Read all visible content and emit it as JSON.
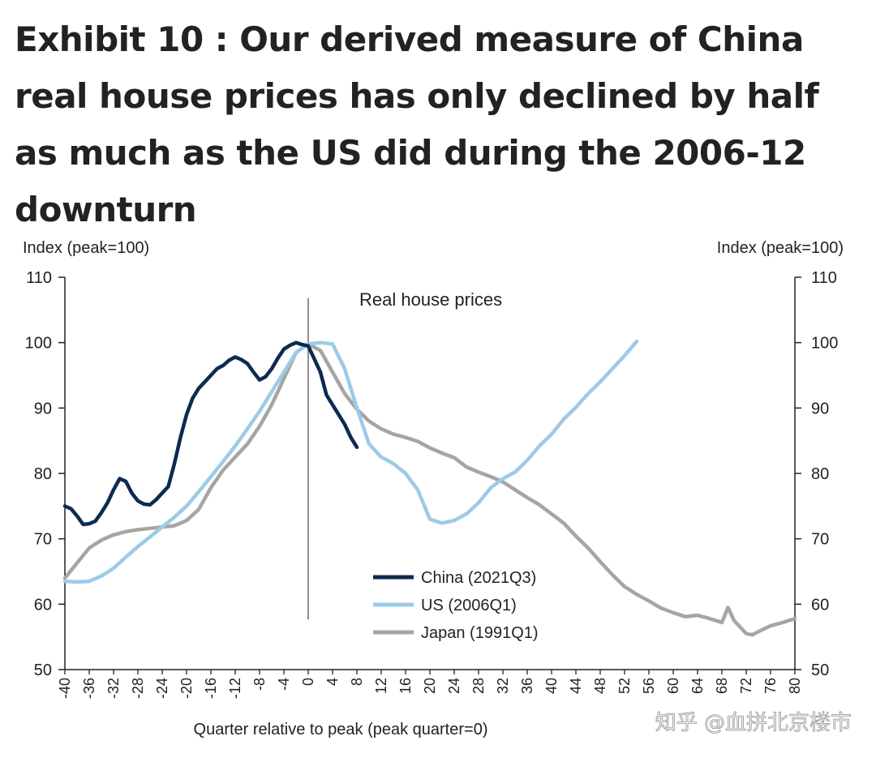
{
  "title": "Exhibit 10 : Our derived measure of China real house prices has only declined by half as much as the US did during the 2006-12 downturn",
  "watermark": "知乎 @血拼北京楼市",
  "chart_data": {
    "type": "line",
    "annotation": "Real house prices",
    "ylabel_left": "Index (peak=100)",
    "ylabel_right": "Index (peak=100)",
    "xlabel": "Quarter relative to peak (peak quarter=0)",
    "ylim": [
      50,
      110
    ],
    "yticks": [
      50,
      60,
      70,
      80,
      90,
      100,
      110
    ],
    "xlim": [
      -40,
      80
    ],
    "xticks": [
      -40,
      -36,
      -32,
      -28,
      -24,
      -20,
      -16,
      -12,
      -8,
      -4,
      0,
      4,
      8,
      12,
      16,
      20,
      24,
      28,
      32,
      36,
      40,
      44,
      48,
      52,
      56,
      60,
      64,
      68,
      72,
      76,
      80
    ],
    "peak_line_x": 0,
    "grid": false,
    "legend_position": "bottom-center",
    "series": [
      {
        "name": "China (2021Q3)",
        "color": "#0d2a52",
        "points": [
          [
            -40,
            75
          ],
          [
            -39,
            74.6
          ],
          [
            -38,
            73.5
          ],
          [
            -37,
            72.2
          ],
          [
            -36,
            72.3
          ],
          [
            -35,
            72.7
          ],
          [
            -34,
            74
          ],
          [
            -33,
            75.5
          ],
          [
            -32,
            77.5
          ],
          [
            -31,
            79.2
          ],
          [
            -30,
            78.8
          ],
          [
            -29,
            77
          ],
          [
            -28,
            75.8
          ],
          [
            -27,
            75.3
          ],
          [
            -26,
            75.2
          ],
          [
            -25,
            76
          ],
          [
            -24,
            77
          ],
          [
            -23,
            78
          ],
          [
            -22,
            81.5
          ],
          [
            -21,
            85.5
          ],
          [
            -20,
            89
          ],
          [
            -19,
            91.5
          ],
          [
            -18,
            93
          ],
          [
            -17,
            94
          ],
          [
            -16,
            95
          ],
          [
            -15,
            96
          ],
          [
            -14,
            96.5
          ],
          [
            -13,
            97.3
          ],
          [
            -12,
            97.8
          ],
          [
            -11,
            97.4
          ],
          [
            -10,
            96.8
          ],
          [
            -9,
            95.5
          ],
          [
            -8,
            94.3
          ],
          [
            -7,
            94.8
          ],
          [
            -6,
            96
          ],
          [
            -5,
            97.6
          ],
          [
            -4,
            99
          ],
          [
            -3,
            99.6
          ],
          [
            -2,
            100
          ],
          [
            -1,
            99.7
          ],
          [
            0,
            99.5
          ],
          [
            1,
            97.5
          ],
          [
            2,
            95.5
          ],
          [
            3,
            92
          ],
          [
            4,
            90.5
          ],
          [
            5,
            89
          ],
          [
            6,
            87.5
          ],
          [
            7,
            85.5
          ],
          [
            8,
            84
          ]
        ]
      },
      {
        "name": "US (2006Q1)",
        "color": "#9ccbe8",
        "points": [
          [
            -40,
            63.5
          ],
          [
            -38,
            63.4
          ],
          [
            -36,
            63.5
          ],
          [
            -34,
            64.3
          ],
          [
            -32,
            65.5
          ],
          [
            -30,
            67.2
          ],
          [
            -28,
            68.8
          ],
          [
            -26,
            70.3
          ],
          [
            -24,
            71.8
          ],
          [
            -22,
            73.3
          ],
          [
            -20,
            75
          ],
          [
            -18,
            77.2
          ],
          [
            -16,
            79.5
          ],
          [
            -14,
            81.8
          ],
          [
            -12,
            84.2
          ],
          [
            -10,
            86.8
          ],
          [
            -8,
            89.5
          ],
          [
            -6,
            92.5
          ],
          [
            -4,
            95.5
          ],
          [
            -2,
            98.5
          ],
          [
            0,
            99.8
          ],
          [
            2,
            100
          ],
          [
            4,
            99.8
          ],
          [
            6,
            96
          ],
          [
            8,
            90
          ],
          [
            10,
            84.5
          ],
          [
            12,
            82.5
          ],
          [
            14,
            81.5
          ],
          [
            16,
            80
          ],
          [
            18,
            77.5
          ],
          [
            20,
            73
          ],
          [
            22,
            72.4
          ],
          [
            24,
            72.8
          ],
          [
            26,
            73.8
          ],
          [
            28,
            75.5
          ],
          [
            30,
            77.8
          ],
          [
            32,
            79.2
          ],
          [
            34,
            80.2
          ],
          [
            36,
            82
          ],
          [
            38,
            84.2
          ],
          [
            40,
            86
          ],
          [
            42,
            88.3
          ],
          [
            44,
            90.1
          ],
          [
            46,
            92.2
          ],
          [
            48,
            94
          ],
          [
            50,
            96
          ],
          [
            52,
            98
          ],
          [
            54,
            100.2
          ]
        ]
      },
      {
        "name": "Japan (1991Q1)",
        "color": "#a5a5a5",
        "points": [
          [
            -40,
            64
          ],
          [
            -38,
            66.3
          ],
          [
            -36,
            68.6
          ],
          [
            -34,
            69.8
          ],
          [
            -32,
            70.6
          ],
          [
            -30,
            71.1
          ],
          [
            -28,
            71.4
          ],
          [
            -26,
            71.6
          ],
          [
            -24,
            71.8
          ],
          [
            -22,
            72
          ],
          [
            -20,
            72.8
          ],
          [
            -18,
            74.5
          ],
          [
            -16,
            77.8
          ],
          [
            -14,
            80.5
          ],
          [
            -12,
            82.5
          ],
          [
            -10,
            84.5
          ],
          [
            -8,
            87.2
          ],
          [
            -6,
            90.5
          ],
          [
            -4,
            94.5
          ],
          [
            -2,
            98.5
          ],
          [
            0,
            99.8
          ],
          [
            2,
            98.8
          ],
          [
            4,
            95.5
          ],
          [
            6,
            92.2
          ],
          [
            8,
            89.8
          ],
          [
            10,
            88
          ],
          [
            12,
            86.8
          ],
          [
            14,
            86
          ],
          [
            16,
            85.5
          ],
          [
            18,
            84.9
          ],
          [
            20,
            83.9
          ],
          [
            22,
            83.1
          ],
          [
            24,
            82.4
          ],
          [
            26,
            81
          ],
          [
            28,
            80.2
          ],
          [
            30,
            79.5
          ],
          [
            32,
            78.7
          ],
          [
            34,
            77.5
          ],
          [
            36,
            76.3
          ],
          [
            38,
            75.2
          ],
          [
            40,
            73.8
          ],
          [
            42,
            72.4
          ],
          [
            44,
            70.4
          ],
          [
            46,
            68.6
          ],
          [
            48,
            66.5
          ],
          [
            50,
            64.5
          ],
          [
            52,
            62.7
          ],
          [
            54,
            61.5
          ],
          [
            56,
            60.5
          ],
          [
            58,
            59.4
          ],
          [
            60,
            58.7
          ],
          [
            62,
            58.1
          ],
          [
            64,
            58.3
          ],
          [
            66,
            57.8
          ],
          [
            68,
            57.2
          ],
          [
            69,
            59.5
          ],
          [
            70,
            57.5
          ],
          [
            72,
            55.5
          ],
          [
            73,
            55.3
          ],
          [
            74,
            55.8
          ],
          [
            76,
            56.7
          ],
          [
            78,
            57.2
          ],
          [
            80,
            57.8
          ]
        ]
      }
    ]
  }
}
